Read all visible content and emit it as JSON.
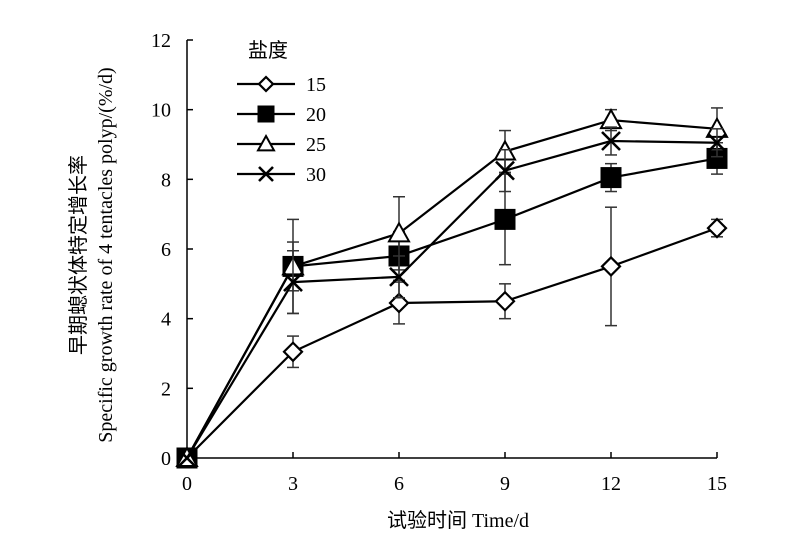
{
  "chart_data": {
    "type": "line",
    "title": "",
    "xlabel": "试验时间 Time/d",
    "ylabel_line1": "早期螅状体特定增长率",
    "ylabel_line2": "Specific growth rate of 4 tentacles polyp/(%/d)",
    "x": [
      0,
      3,
      6,
      9,
      12,
      15
    ],
    "xlim": [
      0,
      15
    ],
    "ylim": [
      0,
      12
    ],
    "xticks": [
      "0",
      "3",
      "6",
      "9",
      "12",
      "15"
    ],
    "yticks": [
      "0",
      "2",
      "4",
      "6",
      "8",
      "10",
      "12"
    ],
    "grid": false,
    "legend_title": "盐度",
    "legend_position": "top-left",
    "series": [
      {
        "name": "15",
        "marker": "diamond",
        "values": [
          0,
          3.05,
          4.45,
          4.5,
          5.5,
          6.6
        ],
        "errors": [
          0,
          0.45,
          0.6,
          0.5,
          1.7,
          0.25
        ],
        "color": "#000000"
      },
      {
        "name": "20",
        "marker": "square",
        "values": [
          0,
          5.5,
          5.8,
          6.85,
          8.05,
          8.6
        ],
        "errors": [
          0,
          0.7,
          0.7,
          1.3,
          0.4,
          0.45
        ],
        "color": "#000000"
      },
      {
        "name": "25",
        "marker": "triangle",
        "values": [
          0,
          5.5,
          6.45,
          8.8,
          9.7,
          9.45
        ],
        "errors": [
          0,
          1.35,
          1.05,
          0.6,
          0.3,
          0.6
        ],
        "color": "#000000"
      },
      {
        "name": "30",
        "marker": "x",
        "values": [
          0,
          5.05,
          5.2,
          8.25,
          9.1,
          9.05
        ],
        "errors": [
          0,
          0.9,
          0.6,
          0.6,
          0.4,
          0.4
        ],
        "color": "#000000"
      }
    ]
  }
}
